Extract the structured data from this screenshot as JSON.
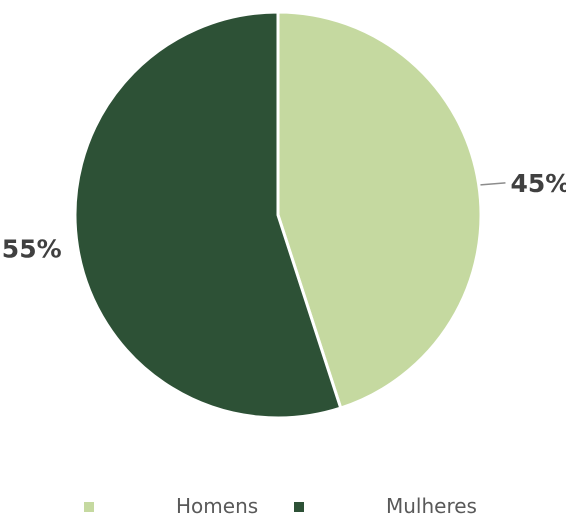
{
  "chart_data": {
    "type": "pie",
    "title": "",
    "categories": [
      "Homens",
      "Mulheres"
    ],
    "values": [
      45,
      55
    ],
    "data_labels": [
      "45%",
      "55%"
    ],
    "colors": [
      "#c5d9a0",
      "#2d5136"
    ],
    "start_angle_deg": 0,
    "direction": "clockwise",
    "legend_position": "bottom"
  }
}
